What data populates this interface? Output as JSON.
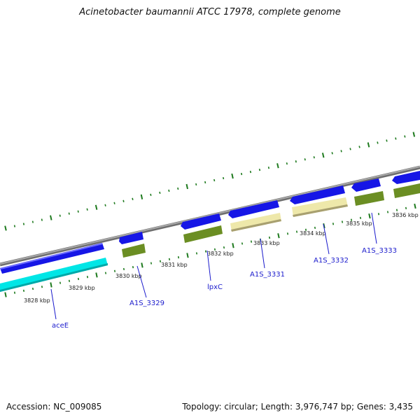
{
  "title": "Acinetobacter baumannii ATCC 17978, complete genome",
  "footer": {
    "accession": "Accession: NC_009085",
    "stats": "Topology: circular; Length: 3,976,747 bp; Genes: 3,435"
  },
  "colors": {
    "backbone": "#8a8a8a",
    "cds_forward": "#1616e6",
    "highlight_cyan": "#00e6e6",
    "highlight_olive": "#6b8e23",
    "highlight_khaki": "#eee8aa",
    "ticks": "#1e7a1e",
    "label": "#1a1acc"
  },
  "kbp_ticks": [
    "3828 kbp",
    "3829 kbp",
    "3830 kbp",
    "3831 kbp",
    "3832 kbp",
    "3833 kbp",
    "3834 kbp",
    "3835 kbp",
    "3836 kbp"
  ],
  "gene_labels": [
    "aceE",
    "A1S_3329",
    "lpxC",
    "A1S_3331",
    "A1S_3332",
    "A1S_3333"
  ]
}
